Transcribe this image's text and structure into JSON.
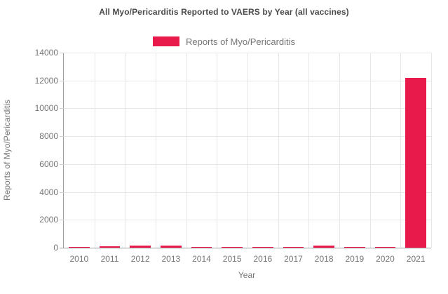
{
  "chart_data": {
    "type": "bar",
    "title": "All Myo/Pericarditis Reported to VAERS by Year (all vaccines)",
    "categories": [
      "2010",
      "2011",
      "2012",
      "2013",
      "2014",
      "2015",
      "2016",
      "2017",
      "2018",
      "2019",
      "2020",
      "2021"
    ],
    "series": [
      {
        "name": "Reports of Myo/Pericarditis",
        "color": "#e8194b",
        "values": [
          60,
          80,
          140,
          130,
          70,
          35,
          45,
          65,
          130,
          70,
          70,
          12200
        ]
      }
    ],
    "xlabel": "Year",
    "ylabel": "Reports of Myo/Pericarditis",
    "ylim": [
      0,
      14000
    ],
    "ytick_step": 2000,
    "ytick_labels": [
      "0",
      "2000",
      "4000",
      "6000",
      "8000",
      "10000",
      "12000",
      "14000"
    ],
    "grid": true,
    "legend_position": "top-center"
  },
  "legend": {
    "label": "Reports of Myo/Pericarditis",
    "swatch_color": "#e8194b"
  },
  "colors": {
    "bar": "#e8194b",
    "title_text": "#4a4a4a",
    "axis_text": "#757575",
    "gridline": "#e6e6e6",
    "axis_line": "#9e9e9e",
    "tick_stub": "#cccccc",
    "background": "#ffffff"
  }
}
